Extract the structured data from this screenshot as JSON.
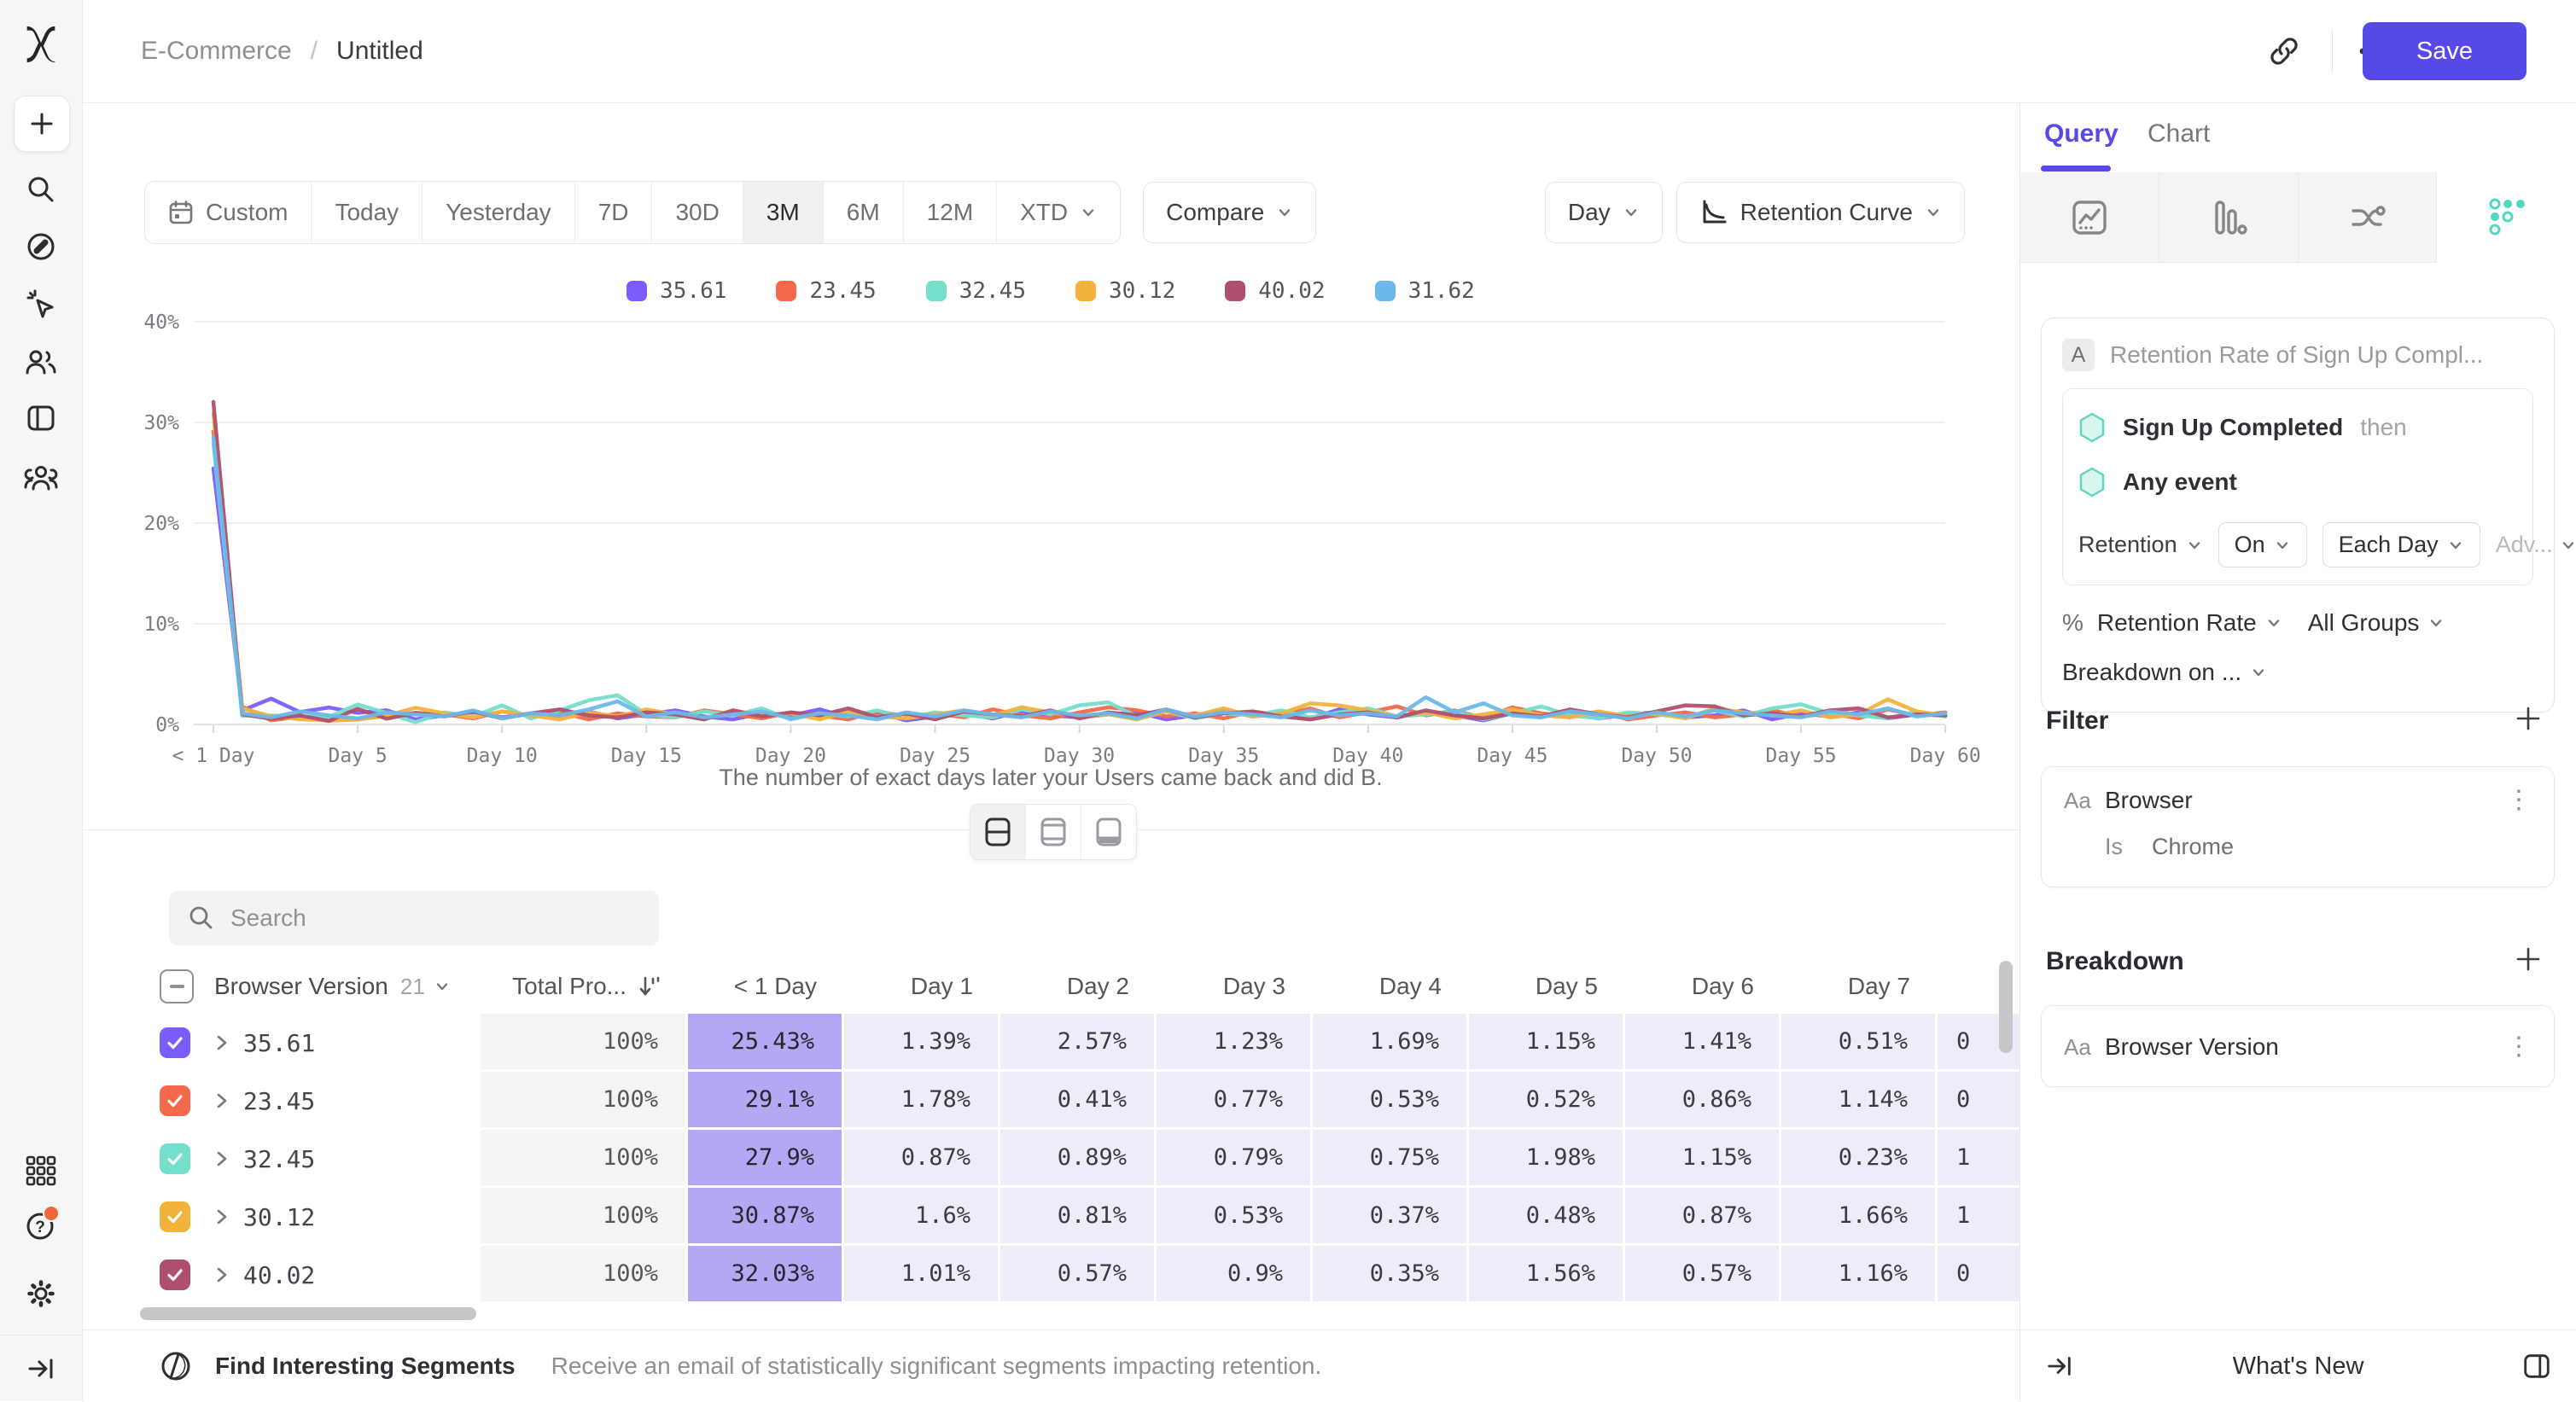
{
  "colors": {
    "accent": "#5649e8",
    "retention_active": "#52d7c2",
    "notification": "#f0653c"
  },
  "header": {
    "breadcrumb": {
      "project": "E-Commerce",
      "separator": "/",
      "report": "Untitled"
    },
    "save_label": "Save"
  },
  "toolbar": {
    "date_ranges": [
      "Custom",
      "Today",
      "Yesterday",
      "7D",
      "30D",
      "3M",
      "6M",
      "12M",
      "XTD"
    ],
    "active_range": "3M",
    "compare_label": "Compare",
    "granularity_label": "Day",
    "chart_type_label": "Retention Curve"
  },
  "chart_data": {
    "type": "line",
    "xlabel": "The number of exact days later your Users came back and did B.",
    "x_ticks": [
      "< 1 Day",
      "Day 5",
      "Day 10",
      "Day 15",
      "Day 20",
      "Day 25",
      "Day 30",
      "Day 35",
      "Day 40",
      "Day 45",
      "Day 50",
      "Day 55",
      "Day 60"
    ],
    "y_ticks": [
      {
        "label": "0%",
        "value": 0
      },
      {
        "label": "10%",
        "value": 10
      },
      {
        "label": "20%",
        "value": 20
      },
      {
        "label": "30%",
        "value": 30
      },
      {
        "label": "40%",
        "value": 40
      }
    ],
    "ylim": [
      0,
      40
    ],
    "x_range_days": [
      0,
      60
    ],
    "grid": true,
    "legend_position": "top-center",
    "series": [
      {
        "name": "35.61",
        "color": "#7c5cfc",
        "values": [
          25.43,
          1.39,
          2.57,
          1.23,
          1.69,
          1.15,
          1.41,
          0.51,
          0.9,
          1.2,
          0.7,
          1.1,
          0.8,
          1.3,
          0.6,
          1.0,
          1.4,
          0.8,
          0.5,
          1.1,
          0.9,
          1.5,
          0.7,
          1.2,
          0.4,
          0.8,
          1.1,
          0.6,
          1.3,
          0.9,
          0.7,
          1.0,
          1.2,
          0.5,
          0.9,
          1.4,
          0.8,
          1.1,
          0.6,
          1.5,
          1.0,
          0.7,
          1.2,
          0.9,
          0.4,
          1.1,
          0.8,
          1.3,
          0.6,
          1.0,
          1.2,
          0.7,
          0.9,
          1.4,
          0.5,
          1.1,
          0.8,
          1.2,
          0.6,
          1.0,
          0.9
        ]
      },
      {
        "name": "23.45",
        "color": "#f4694b",
        "values": [
          29.1,
          1.78,
          0.41,
          0.77,
          0.53,
          0.52,
          0.86,
          1.14,
          1.0,
          0.6,
          1.3,
          0.9,
          1.2,
          0.5,
          1.1,
          0.8,
          0.7,
          1.4,
          1.0,
          0.6,
          1.2,
          0.9,
          0.5,
          1.3,
          0.8,
          1.1,
          0.7,
          1.5,
          0.9,
          0.6,
          1.2,
          1.7,
          1.4,
          0.8,
          1.1,
          0.6,
          1.3,
          0.9,
          1.6,
          0.7,
          1.2,
          1.8,
          0.9,
          1.4,
          0.6,
          1.7,
          1.1,
          0.8,
          1.3,
          0.5,
          0.9,
          1.2,
          0.7,
          1.0,
          1.4,
          0.8,
          1.1,
          0.6,
          1.5,
          0.9,
          1.2
        ]
      },
      {
        "name": "32.45",
        "color": "#74dfca",
        "values": [
          27.9,
          0.87,
          0.89,
          0.79,
          0.75,
          1.98,
          1.15,
          0.23,
          1.2,
          0.8,
          1.9,
          0.6,
          1.4,
          2.4,
          2.9,
          1.0,
          0.7,
          1.3,
          0.9,
          1.6,
          0.5,
          1.1,
          0.8,
          1.4,
          0.6,
          1.2,
          0.9,
          0.7,
          1.5,
          1.0,
          1.9,
          2.2,
          0.8,
          1.3,
          0.6,
          1.1,
          0.9,
          1.4,
          0.7,
          1.2,
          1.6,
          0.8,
          1.0,
          1.3,
          0.5,
          1.1,
          1.8,
          0.9,
          0.6,
          1.2,
          1.0,
          0.7,
          1.4,
          0.8,
          1.6,
          2.0,
          1.1,
          0.9,
          0.6,
          1.3,
          0.8
        ]
      },
      {
        "name": "30.12",
        "color": "#f2b33d",
        "values": [
          30.87,
          1.6,
          0.81,
          0.53,
          0.37,
          0.48,
          0.87,
          1.66,
          1.1,
          0.7,
          1.3,
          0.9,
          0.5,
          1.2,
          0.8,
          1.5,
          1.0,
          0.6,
          1.4,
          0.9,
          1.1,
          0.5,
          1.3,
          0.8,
          0.6,
          1.0,
          1.4,
          0.9,
          1.7,
          1.2,
          0.7,
          1.0,
          0.5,
          1.3,
          0.9,
          1.6,
          0.8,
          1.1,
          2.1,
          1.9,
          1.4,
          0.8,
          1.2,
          0.6,
          1.0,
          1.5,
          0.9,
          0.7,
          1.3,
          0.8,
          1.1,
          0.6,
          1.6,
          1.2,
          0.9,
          1.4,
          0.7,
          1.0,
          2.5,
          1.3,
          0.9
        ]
      },
      {
        "name": "40.02",
        "color": "#b04f6d",
        "values": [
          32.03,
          1.01,
          0.57,
          0.9,
          0.35,
          1.56,
          0.57,
          1.16,
          0.8,
          1.3,
          0.6,
          1.1,
          1.5,
          0.9,
          0.7,
          1.2,
          1.0,
          0.5,
          1.4,
          0.8,
          1.2,
          0.9,
          1.6,
          0.7,
          1.1,
          0.5,
          1.3,
          1.0,
          0.8,
          1.4,
          0.6,
          1.2,
          0.9,
          1.5,
          0.7,
          1.1,
          1.3,
          0.8,
          0.5,
          1.0,
          1.2,
          0.7,
          1.4,
          0.9,
          0.6,
          1.1,
          0.8,
          1.5,
          1.0,
          0.7,
          1.3,
          1.9,
          1.8,
          0.9,
          1.1,
          0.8,
          1.4,
          1.6,
          0.7,
          1.0,
          0.9
        ]
      },
      {
        "name": "31.62",
        "color": "#6cb8ea",
        "values": [
          28.5,
          1.1,
          0.7,
          1.3,
          0.9,
          0.6,
          1.2,
          1.0,
          0.8,
          1.4,
          0.6,
          1.1,
          0.9,
          1.5,
          2.3,
          0.8,
          1.2,
          0.7,
          1.0,
          1.3,
          0.6,
          1.1,
          0.9,
          0.5,
          1.2,
          0.8,
          1.4,
          1.0,
          0.7,
          1.3,
          0.9,
          1.1,
          0.6,
          1.5,
          0.8,
          1.2,
          1.0,
          0.7,
          1.4,
          0.9,
          1.1,
          0.8,
          2.7,
          1.2,
          2.1,
          0.9,
          0.7,
          1.3,
          1.0,
          0.6,
          1.2,
          0.8,
          1.4,
          1.1,
          0.9,
          0.7,
          1.3,
          1.0,
          1.6,
          0.8,
          1.1
        ]
      }
    ]
  },
  "view_switcher": {
    "options": [
      "chart-and-table",
      "chart-only",
      "table-only"
    ],
    "active_index": 0
  },
  "search": {
    "placeholder": "Search"
  },
  "table": {
    "group_header": "Browser Version",
    "group_count": "21",
    "total_header": "Total Pro...",
    "day_headers": [
      "< 1 Day",
      "Day 1",
      "Day 2",
      "Day 3",
      "Day 4",
      "Day 5",
      "Day 6",
      "Day 7"
    ],
    "rows": [
      {
        "label": "35.61",
        "color": "#7c5cfc",
        "total": "100%",
        "days": [
          "25.43%",
          "1.39%",
          "2.57%",
          "1.23%",
          "1.69%",
          "1.15%",
          "1.41%",
          "0.51%"
        ],
        "clipped": "0"
      },
      {
        "label": "23.45",
        "color": "#f4694b",
        "total": "100%",
        "days": [
          "29.1%",
          "1.78%",
          "0.41%",
          "0.77%",
          "0.53%",
          "0.52%",
          "0.86%",
          "1.14%"
        ],
        "clipped": "0"
      },
      {
        "label": "32.45",
        "color": "#74dfca",
        "total": "100%",
        "days": [
          "27.9%",
          "0.87%",
          "0.89%",
          "0.79%",
          "0.75%",
          "1.98%",
          "1.15%",
          "0.23%"
        ],
        "clipped": "1"
      },
      {
        "label": "30.12",
        "color": "#f2b33d",
        "total": "100%",
        "days": [
          "30.87%",
          "1.6%",
          "0.81%",
          "0.53%",
          "0.37%",
          "0.48%",
          "0.87%",
          "1.66%"
        ],
        "clipped": "1"
      },
      {
        "label": "40.02",
        "color": "#b04f6d",
        "total": "100%",
        "days": [
          "32.03%",
          "1.01%",
          "0.57%",
          "0.9%",
          "0.35%",
          "1.56%",
          "0.57%",
          "1.16%"
        ],
        "clipped": "0"
      }
    ]
  },
  "footer": {
    "title": "Find Interesting Segments",
    "description": "Receive an email of statistically significant segments impacting retention."
  },
  "panel": {
    "tabs": [
      {
        "label": "Query"
      },
      {
        "label": "Chart"
      }
    ],
    "active_tab": "Query",
    "query_card": {
      "badge": "A",
      "title": "Retention Rate of Sign Up Compl...",
      "first_event": "Sign Up Completed",
      "then_label": "then",
      "second_event": "Any event",
      "retention_label": "Retention",
      "on_label": "On",
      "each_day_label": "Each Day",
      "advanced_label": "Adv...",
      "percent_label": "%",
      "measure_label": "Retention Rate",
      "groups_label": "All Groups",
      "breakdown_on_label": "Breakdown on ..."
    },
    "filter": {
      "section_title": "Filter",
      "type_badge": "Aa",
      "property": "Browser",
      "operator": "Is",
      "value": "Chrome"
    },
    "breakdown": {
      "section_title": "Breakdown",
      "type_badge": "Aa",
      "property": "Browser Version"
    },
    "whats_new_label": "What's New"
  }
}
